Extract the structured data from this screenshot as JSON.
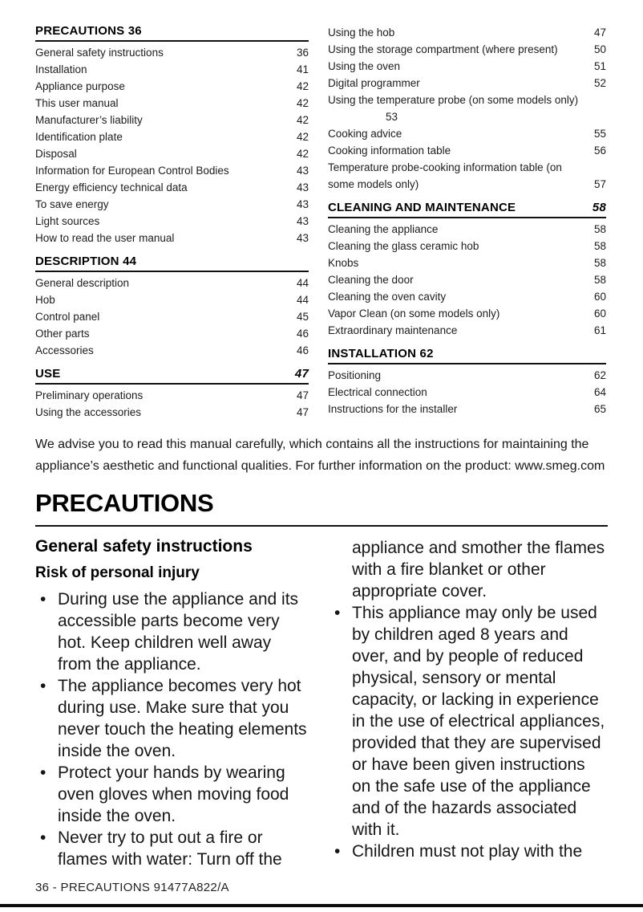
{
  "toc": {
    "left_sections": [
      {
        "title": "PRECAUTIONS 36",
        "page": "",
        "items": [
          {
            "label": "General safety instructions",
            "page": "36"
          },
          {
            "label": "Installation",
            "page": "41"
          },
          {
            "label": "Appliance purpose",
            "page": "42"
          },
          {
            "label": "This user manual",
            "page": "42"
          },
          {
            "label": "Manufacturer’s liability",
            "page": "42"
          },
          {
            "label": "Identification plate",
            "page": "42"
          },
          {
            "label": "Disposal",
            "page": "42"
          },
          {
            "label": "Information for European Control Bodies",
            "page": "43"
          },
          {
            "label": "Energy efficiency technical data",
            "page": "43"
          },
          {
            "label": "To save energy",
            "page": "43"
          },
          {
            "label": "Light sources",
            "page": "43"
          },
          {
            "label": "How to read the user manual",
            "page": "43"
          }
        ]
      },
      {
        "title": "DESCRIPTION 44",
        "page": "",
        "items": [
          {
            "label": "General description",
            "page": "44"
          },
          {
            "label": "Hob",
            "page": "44"
          },
          {
            "label": "Control panel",
            "page": "45"
          },
          {
            "label": "Other parts",
            "page": "46"
          },
          {
            "label": "Accessories",
            "page": "46"
          }
        ]
      },
      {
        "title": "USE",
        "page": "47",
        "items": [
          {
            "label": "Preliminary operations",
            "page": "47"
          },
          {
            "label": "Using the accessories",
            "page": "47"
          }
        ]
      }
    ],
    "right_sections": [
      {
        "title": "",
        "page": "",
        "items": [
          {
            "label": "Using the hob",
            "page": "47"
          },
          {
            "label": "Using the storage compartment (where present)",
            "page": "50"
          },
          {
            "label": "Using the oven",
            "page": "51"
          },
          {
            "label": "Digital programmer",
            "page": "52"
          },
          {
            "label": "Using the temperature probe (on some models only)",
            "page": "53",
            "page_below": true
          },
          {
            "label": "Cooking advice",
            "page": "55"
          },
          {
            "label": "Cooking information table",
            "page": "56"
          },
          {
            "label": "Temperature probe-cooking information table (on some models only)",
            "page": "57"
          }
        ]
      },
      {
        "title": "CLEANING AND MAINTENANCE",
        "page": "58",
        "items": [
          {
            "label": "Cleaning the appliance",
            "page": "58"
          },
          {
            "label": "Cleaning the glass ceramic hob",
            "page": "58"
          },
          {
            "label": "Knobs",
            "page": "58"
          },
          {
            "label": "Cleaning the door",
            "page": "58"
          },
          {
            "label": "Cleaning the oven cavity",
            "page": "60"
          },
          {
            "label": "Vapor Clean (on some models only)",
            "page": "60"
          },
          {
            "label": "Extraordinary maintenance",
            "page": "61"
          }
        ]
      },
      {
        "title": "INSTALLATION 62",
        "page": "",
        "items": [
          {
            "label": "Positioning",
            "page": "62"
          },
          {
            "label": "Electrical connection",
            "page": "64"
          },
          {
            "label": "Instructions for the installer",
            "page": "65"
          }
        ]
      }
    ]
  },
  "intro": "We advise you to read this manual carefully, which contains all the instructions for maintaining the appliance’s aesthetic and functional qualities. For further information on the product: www.smeg.com",
  "article": {
    "title": "PRECAUTIONS",
    "left_column": {
      "heading": "General safety instructions",
      "subheading": "Risk of personal injury",
      "blocks": [
        {
          "type": "bullet",
          "text": "During use the appliance and its accessible parts become very hot. Keep children well away from the appliance."
        },
        {
          "type": "bullet",
          "text": "The appliance becomes very hot during use. Make sure that you never touch the heating elements inside the oven."
        },
        {
          "type": "bullet",
          "text": "Protect your hands by wearing oven gloves when moving food inside the oven."
        },
        {
          "type": "bullet",
          "text": "Never try to put out a fire or flames with water: Turn off the"
        }
      ]
    },
    "right_column": {
      "heading": "",
      "subheading": "",
      "blocks": [
        {
          "type": "continuation",
          "text": "appliance and smother the flames with a fire blanket or other appropriate cover."
        },
        {
          "type": "bullet",
          "text": "This appliance may only be used by children aged 8 years and over, and by people of reduced physical, sensory or mental capacity, or lacking in experience in the use of electrical appliances, provided that they are supervised or have been given instructions on the safe use of the appliance and of the hazards associated with it."
        },
        {
          "type": "bullet",
          "text": "Children must not play with the"
        }
      ]
    }
  },
  "footer": {
    "text": "36 - PRECAUTIONS 91477A822/A"
  }
}
